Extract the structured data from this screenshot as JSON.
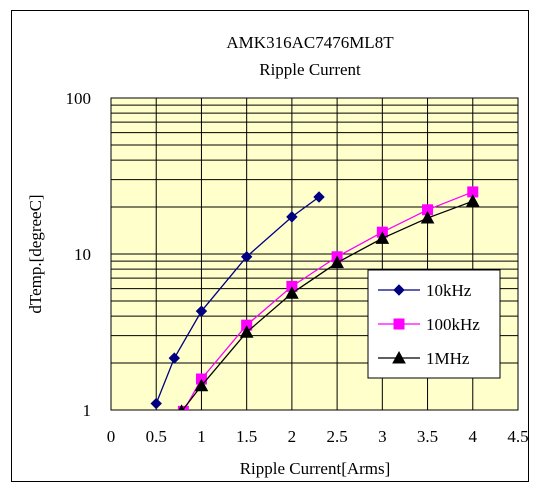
{
  "chart_data": {
    "type": "line",
    "title": "AMK316AC7476ML8T",
    "subtitle": "Ripple Current",
    "xlabel": "Ripple Current[Arms]",
    "ylabel": "dTemp.[degreeC]",
    "xlim": [
      0,
      4.5
    ],
    "ylim": [
      1,
      100
    ],
    "y_scale": "log",
    "x_ticks": [
      "0",
      "0.5",
      "1",
      "1.5",
      "2",
      "2.5",
      "3",
      "3.5",
      "4",
      "4.5"
    ],
    "y_ticks": [
      "1",
      "10",
      "100"
    ],
    "grid": true,
    "legend_position": "right",
    "plot_background": "#ffffcc",
    "series": [
      {
        "name": "10kHz",
        "color": "#000080",
        "marker": "diamond",
        "x": [
          0.5,
          0.7,
          1.0,
          1.5,
          2.0,
          2.3
        ],
        "y": [
          1.1,
          2.15,
          4.3,
          9.6,
          17.3,
          23.2
        ]
      },
      {
        "name": "100kHz",
        "color": "#ff00ff",
        "marker": "square",
        "x": [
          0.8,
          1.0,
          1.5,
          2.0,
          2.5,
          3.0,
          3.5,
          4.0
        ],
        "y": [
          0.98,
          1.58,
          3.5,
          6.2,
          9.6,
          13.8,
          19.2,
          25.0
        ]
      },
      {
        "name": "1MHz",
        "color": "#000000",
        "marker": "triangle",
        "x": [
          0.78,
          1.0,
          1.5,
          2.0,
          2.5,
          3.0,
          3.5,
          4.0
        ],
        "y": [
          0.98,
          1.43,
          3.15,
          5.6,
          8.8,
          12.6,
          17.0,
          21.8
        ]
      }
    ]
  }
}
